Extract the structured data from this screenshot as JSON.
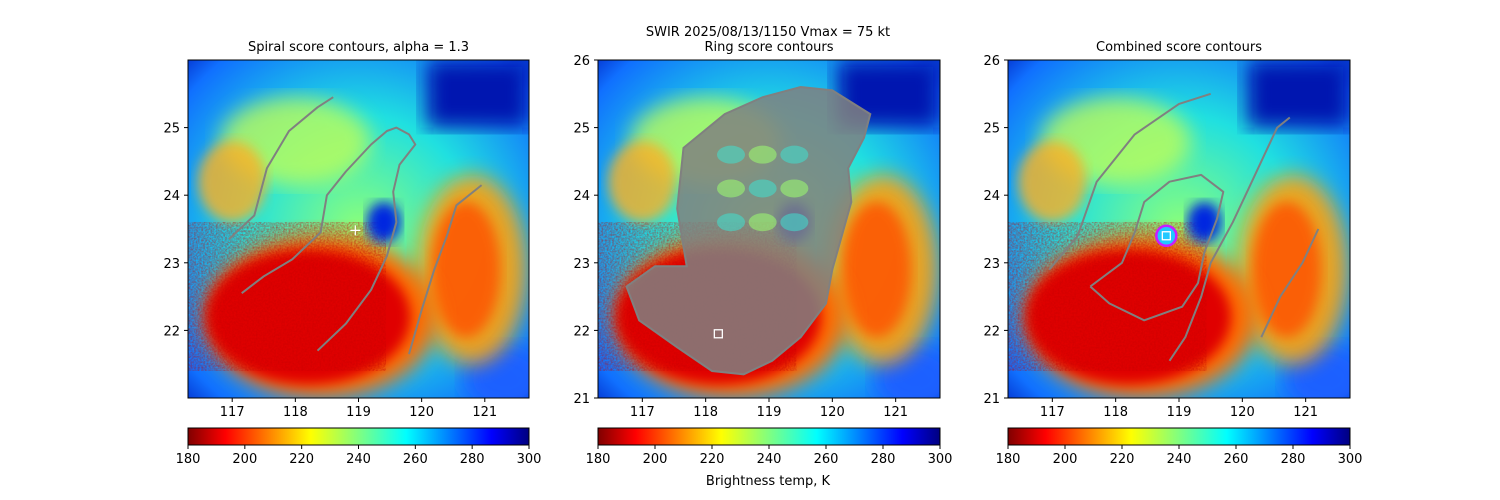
{
  "figure": {
    "suptitle": "SWIR  2025/08/13/1150    Vmax = 75 kt",
    "colorbar_label": "Brightness temp, K"
  },
  "colors": {
    "contour": "#808080",
    "background": "#ffffff",
    "circle": "#c81eff",
    "marker": "#ffffff"
  },
  "chart_data": [
    {
      "type": "heatmap",
      "title": "Spiral score contours, alpha =  1.3",
      "xlim": [
        116.3,
        121.7
      ],
      "ylim": [
        21,
        26
      ],
      "xticks": [
        117,
        118,
        119,
        120,
        121
      ],
      "yticks": [
        22,
        23,
        24,
        25
      ],
      "colorbar": {
        "range": [
          180,
          300
        ],
        "ticks": [
          180,
          200,
          220,
          240,
          260,
          280,
          300
        ],
        "colormap": "jet_r"
      },
      "marker": {
        "kind": "plus",
        "x": 118.95,
        "y": 23.48
      },
      "contours": [
        [
          [
            116.95,
            23.35
          ],
          [
            117.35,
            23.7
          ],
          [
            117.55,
            24.4
          ],
          [
            117.9,
            24.95
          ],
          [
            118.35,
            25.3
          ],
          [
            118.6,
            25.45
          ]
        ],
        [
          [
            117.15,
            22.55
          ],
          [
            117.5,
            22.8
          ],
          [
            117.95,
            23.05
          ],
          [
            118.4,
            23.45
          ],
          [
            118.5,
            24.0
          ],
          [
            118.8,
            24.35
          ],
          [
            119.2,
            24.75
          ],
          [
            119.45,
            24.95
          ],
          [
            119.6,
            25.0
          ],
          [
            119.8,
            24.9
          ],
          [
            119.9,
            24.75
          ],
          [
            119.65,
            24.45
          ],
          [
            119.55,
            24.05
          ],
          [
            119.6,
            23.6
          ],
          [
            119.45,
            23.1
          ],
          [
            119.2,
            22.6
          ],
          [
            118.8,
            22.1
          ],
          [
            118.35,
            21.7
          ]
        ],
        [
          [
            119.8,
            21.65
          ],
          [
            120.0,
            22.3
          ],
          [
            120.2,
            22.9
          ],
          [
            120.4,
            23.4
          ],
          [
            120.55,
            23.85
          ],
          [
            120.95,
            24.15
          ]
        ]
      ]
    },
    {
      "type": "heatmap",
      "title": "Ring score contours",
      "xlim": [
        116.3,
        121.7
      ],
      "ylim": [
        21,
        26
      ],
      "xticks": [
        117,
        118,
        119,
        120,
        121
      ],
      "yticks": [
        21,
        22,
        23,
        24,
        25,
        26
      ],
      "colorbar": {
        "range": [
          180,
          300
        ],
        "ticks": [
          180,
          200,
          220,
          240,
          260,
          280,
          300
        ],
        "colormap": "jet_r"
      },
      "marker": {
        "kind": "square",
        "x": 118.2,
        "y": 21.95
      },
      "contour_region": [
        [
          117.7,
          22.95
        ],
        [
          117.55,
          23.8
        ],
        [
          117.65,
          24.7
        ],
        [
          118.3,
          25.2
        ],
        [
          118.9,
          25.45
        ],
        [
          119.5,
          25.6
        ],
        [
          120.0,
          25.55
        ],
        [
          120.6,
          25.2
        ],
        [
          120.5,
          24.85
        ],
        [
          120.25,
          24.4
        ],
        [
          120.3,
          23.9
        ],
        [
          120.15,
          23.4
        ],
        [
          120.0,
          22.9
        ],
        [
          119.9,
          22.4
        ],
        [
          119.5,
          21.9
        ],
        [
          119.05,
          21.55
        ],
        [
          118.6,
          21.35
        ],
        [
          118.1,
          21.4
        ],
        [
          117.55,
          21.75
        ],
        [
          116.95,
          22.15
        ],
        [
          116.75,
          22.65
        ],
        [
          117.2,
          22.95
        ]
      ]
    },
    {
      "type": "heatmap",
      "title": "Combined score contours",
      "xlim": [
        116.3,
        121.7
      ],
      "ylim": [
        21,
        26
      ],
      "xticks": [
        117,
        118,
        119,
        120,
        121
      ],
      "yticks": [
        21,
        22,
        23,
        24,
        25,
        26
      ],
      "colorbar": {
        "range": [
          180,
          300
        ],
        "ticks": [
          180,
          200,
          220,
          240,
          260,
          280,
          300
        ],
        "colormap": "jet_r"
      },
      "marker": {
        "kind": "square-circle",
        "x": 118.8,
        "y": 23.4
      },
      "contours": [
        [
          [
            116.95,
            22.9
          ],
          [
            117.4,
            23.4
          ],
          [
            117.7,
            24.2
          ],
          [
            118.3,
            24.9
          ],
          [
            119.0,
            25.35
          ],
          [
            119.5,
            25.5
          ]
        ],
        [
          [
            117.6,
            22.65
          ],
          [
            118.1,
            23.0
          ],
          [
            118.3,
            23.45
          ],
          [
            118.45,
            23.9
          ],
          [
            118.85,
            24.2
          ],
          [
            119.35,
            24.3
          ],
          [
            119.7,
            24.05
          ],
          [
            119.6,
            23.65
          ],
          [
            119.4,
            23.15
          ],
          [
            119.3,
            22.7
          ],
          [
            119.05,
            22.35
          ],
          [
            118.45,
            22.15
          ],
          [
            117.9,
            22.4
          ],
          [
            117.6,
            22.65
          ]
        ],
        [
          [
            118.85,
            21.55
          ],
          [
            119.1,
            21.9
          ],
          [
            119.35,
            22.5
          ],
          [
            119.5,
            23.0
          ],
          [
            119.85,
            23.6
          ],
          [
            120.1,
            24.1
          ],
          [
            120.35,
            24.6
          ],
          [
            120.55,
            25.0
          ],
          [
            120.75,
            25.15
          ]
        ],
        [
          [
            120.3,
            21.9
          ],
          [
            120.6,
            22.5
          ],
          [
            120.95,
            23.0
          ],
          [
            121.2,
            23.5
          ]
        ]
      ]
    }
  ]
}
